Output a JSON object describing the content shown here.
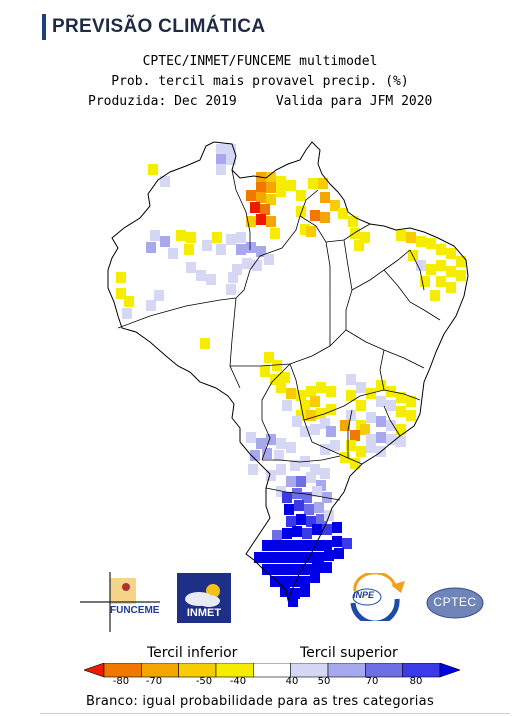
{
  "header": {
    "title": "PREVISÃO CLIMÁTICA"
  },
  "map": {
    "line1": "CPTEC/INMET/FUNCEME multimodel",
    "line2": "Prob. tercil mais provavel precip. (%)",
    "line3": "Produzida: Dec 2019     Valida para JFM 2020"
  },
  "logos": {
    "funceme": "FUNCEME",
    "inmet": "INMET",
    "inpe": "INPE",
    "cptec": "CPTEC"
  },
  "legend": {
    "inferior_label": "Tercil inferior",
    "superior_label": "Tercil superior",
    "ticks": [
      "-80",
      "-70",
      "-50",
      "-40",
      "40",
      "50",
      "70",
      "80"
    ],
    "colors": [
      "#ee1a00",
      "#f07800",
      "#f4a500",
      "#f7cc00",
      "#f5ec00",
      "#ffffff",
      "#d6d6f5",
      "#a8a8ee",
      "#6e6ee8",
      "#3a3ae8",
      "#0000e6"
    ],
    "footnote": "Branco: igual probabilidade para as tres categorias"
  },
  "colors": {
    "brand": "#1f3f7a"
  }
}
